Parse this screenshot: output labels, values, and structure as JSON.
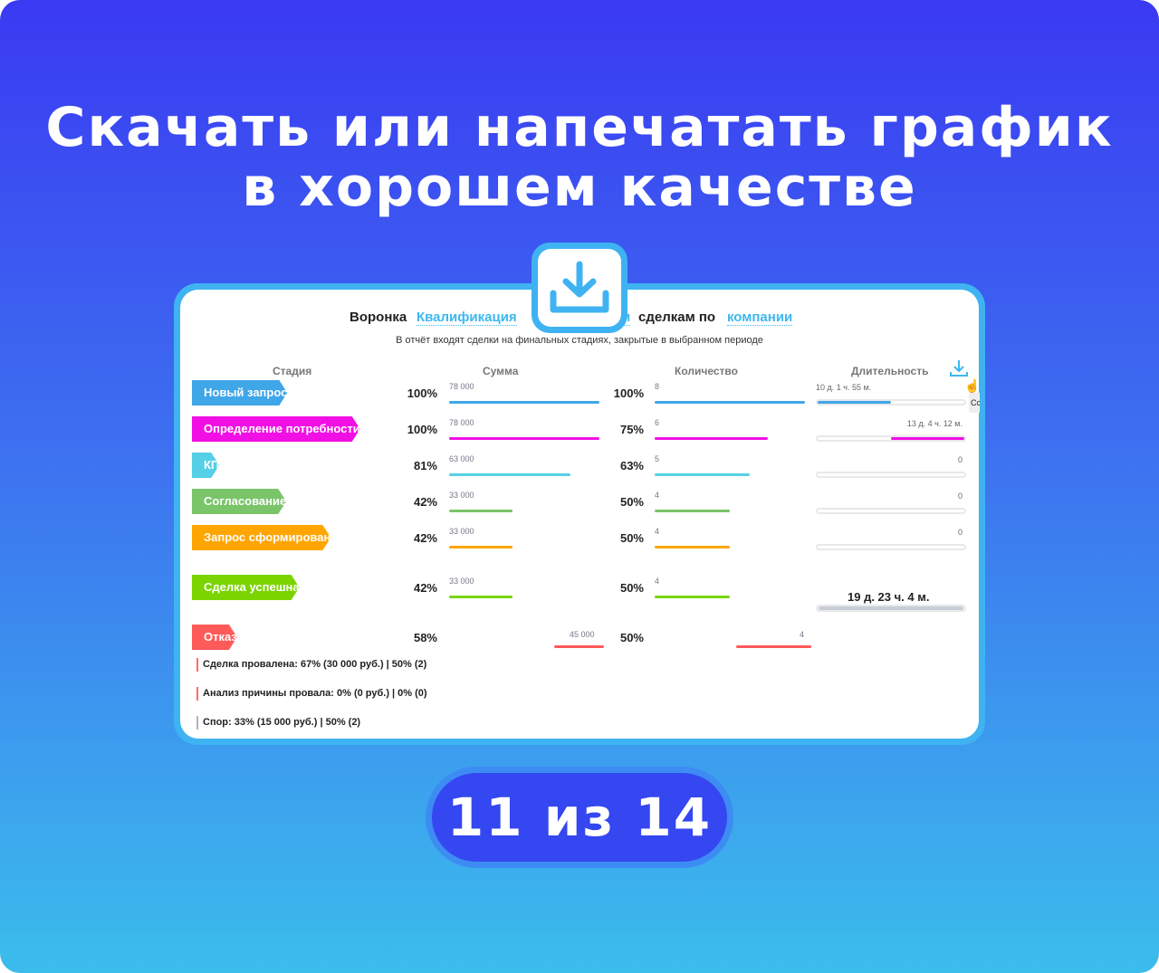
{
  "title_line1": "Скачать или напечатать график",
  "title_line2": "в хорошем качестве",
  "header": {
    "prefix": "Воронка",
    "funnel": "Квалификация",
    "frag": "и",
    "mid": "сделкам по",
    "group": "компании"
  },
  "subtitle": "В отчёт входят сделки на финальных стадиях, закрытые в выбранном периоде",
  "columns": {
    "stage": "Стадия",
    "sum": "Сумма",
    "count": "Количество",
    "duration": "Длительность"
  },
  "rows": [
    {
      "stage": "Новый запрос",
      "color": "#3fa6e8",
      "sum_pct": "100%",
      "sum": "78 000",
      "sum_frac": 1.0,
      "cnt_pct": "100%",
      "cnt": "8",
      "cnt_frac": 1.0,
      "duration": "10 д. 1 ч. 55 м.",
      "dur_frac": 0.5
    },
    {
      "stage": "Определение потребности",
      "color": "#f10fe6",
      "sum_pct": "100%",
      "sum": "78 000",
      "sum_frac": 1.0,
      "cnt_pct": "75%",
      "cnt": "6",
      "cnt_frac": 0.75,
      "duration": "13 д. 4 ч. 12 м.",
      "dur_frac": 0.5
    },
    {
      "stage": "КП",
      "color": "#55d0e6",
      "sum_pct": "81%",
      "sum": "63 000",
      "sum_frac": 0.81,
      "cnt_pct": "63%",
      "cnt": "5",
      "cnt_frac": 0.63,
      "duration": "0",
      "dur_frac": 0
    },
    {
      "stage": "Согласование",
      "color": "#7ac46a",
      "sum_pct": "42%",
      "sum": "33 000",
      "sum_frac": 0.42,
      "cnt_pct": "50%",
      "cnt": "4",
      "cnt_frac": 0.5,
      "duration": "0",
      "dur_frac": 0
    },
    {
      "stage": "Запрос сформирован",
      "color": "#ffa500",
      "sum_pct": "42%",
      "sum": "33 000",
      "sum_frac": 0.42,
      "cnt_pct": "50%",
      "cnt": "4",
      "cnt_frac": 0.5,
      "duration": "0",
      "dur_frac": 0
    },
    {
      "stage": "Сделка успешна",
      "color": "#7bd400",
      "sum_pct": "42%",
      "sum": "33 000",
      "sum_frac": 0.42,
      "cnt_pct": "50%",
      "cnt": "4",
      "cnt_frac": 0.5
    },
    {
      "stage": "Отказ",
      "color": "#ff5a5a",
      "sum_pct": "58%",
      "sum": "45 000",
      "sum_frac": 0.58,
      "cnt_pct": "50%",
      "cnt": "4",
      "cnt_frac": 0.5
    }
  ],
  "total_duration": "19 д. 23 ч. 4 м.",
  "reasons": [
    {
      "text": "Сделка провалена: 67% (30 000 руб.) | 50% (2)",
      "color": "#ff6b6b"
    },
    {
      "text": "Анализ причины провала: 0% (0 руб.) | 0% (0)",
      "color": "#ff6b6b"
    },
    {
      "text": "Спор: 33% (15 000 руб.) | 50% (2)",
      "color": "#aab4c4"
    }
  ],
  "tooltip_frag": "Cc",
  "badge": "11 из 14"
}
